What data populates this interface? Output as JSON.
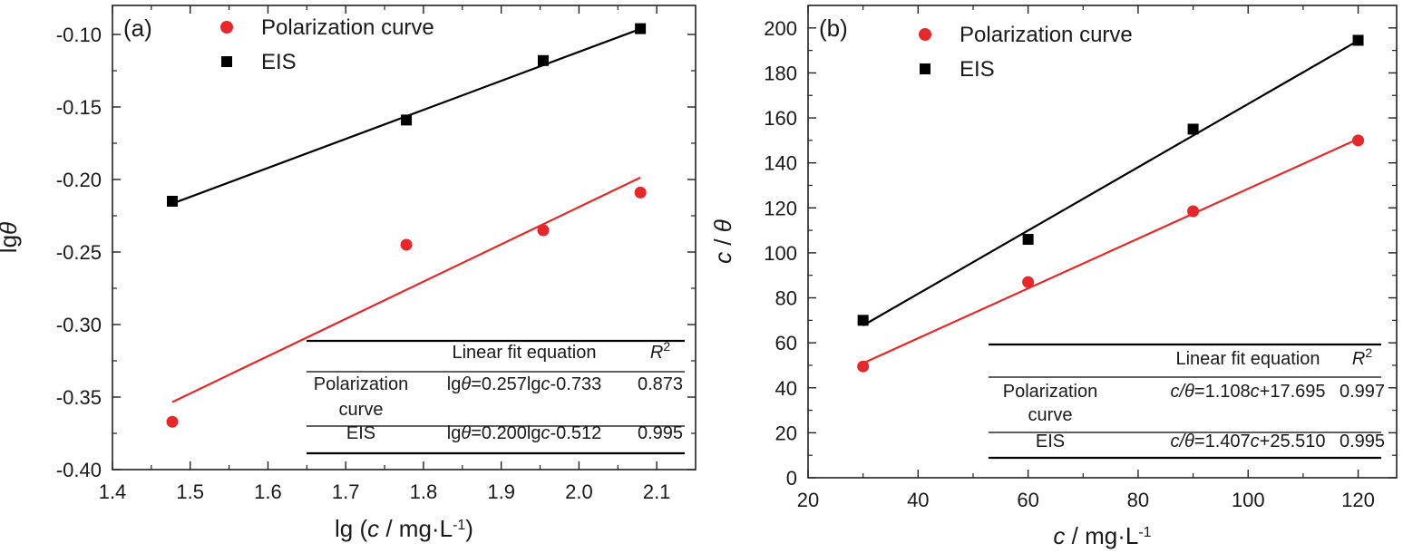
{
  "colors": {
    "polarization": "#e8272a",
    "eis": "#000000",
    "axis": "#222222"
  },
  "chart_data": [
    {
      "type": "scatter",
      "panel_label": "(a)",
      "xlabel": "lg (c / mg·L-1)",
      "ylabel": "lgθ",
      "xlim": [
        1.4,
        2.15
      ],
      "ylim": [
        -0.4,
        -0.08
      ],
      "xticks": [
        1.4,
        1.5,
        1.6,
        1.7,
        1.8,
        1.9,
        2.0,
        2.1
      ],
      "xtick_labels": [
        "1.4",
        "1.5",
        "1.6",
        "1.7",
        "1.8",
        "1.9",
        "2.0",
        "2.1"
      ],
      "yticks": [
        -0.4,
        -0.35,
        -0.3,
        -0.25,
        -0.2,
        -0.15,
        -0.1
      ],
      "ytick_labels": [
        "-0.40",
        "-0.35",
        "-0.30",
        "-0.25",
        "-0.20",
        "-0.15",
        "-0.10"
      ],
      "legend_position": "top-left",
      "series": [
        {
          "name": "Polarization curve",
          "marker": "circle",
          "color": "#e8272a",
          "x": [
            1.477,
            1.778,
            1.954,
            2.079
          ],
          "y": [
            -0.367,
            -0.245,
            -0.235,
            -0.209
          ],
          "fit": {
            "slope": 0.257,
            "intercept": -0.733
          }
        },
        {
          "name": "EIS",
          "marker": "square",
          "color": "#000000",
          "x": [
            1.477,
            1.778,
            1.954,
            2.079
          ],
          "y": [
            -0.215,
            -0.159,
            -0.118,
            -0.096
          ],
          "fit": {
            "slope": 0.2,
            "intercept": -0.512
          }
        }
      ],
      "table": {
        "header": [
          "",
          "Linear fit equation",
          "R2"
        ],
        "rows": [
          {
            "label": "Polarization curve",
            "lhs": "lg",
            "lhs_var": "θ",
            "mid": "=0.257lg",
            "rhs_var": "c",
            "tail": "-0.733",
            "r2": "0.873"
          },
          {
            "label": "EIS",
            "lhs": "lg",
            "lhs_var": "θ",
            "mid": "=0.200lg",
            "rhs_var": "c",
            "tail": "-0.512",
            "r2": "0.995"
          }
        ]
      }
    },
    {
      "type": "scatter",
      "panel_label": "(b)",
      "xlabel": "c / mg·L-1",
      "ylabel": "c / θ",
      "xlim": [
        20,
        127
      ],
      "ylim": [
        0,
        210
      ],
      "xticks": [
        20,
        40,
        60,
        80,
        100,
        120
      ],
      "xtick_labels": [
        "20",
        "40",
        "60",
        "80",
        "100",
        "120"
      ],
      "yticks": [
        0,
        20,
        40,
        60,
        80,
        100,
        120,
        140,
        160,
        180,
        200
      ],
      "ytick_labels": [
        "0",
        "20",
        "40",
        "60",
        "80",
        "100",
        "120",
        "140",
        "160",
        "180",
        "200"
      ],
      "legend_position": "top-left",
      "series": [
        {
          "name": "Polarization curve",
          "marker": "circle",
          "color": "#e8272a",
          "x": [
            30,
            60,
            90,
            120
          ],
          "y": [
            49.5,
            87,
            118.5,
            150
          ],
          "fit": {
            "slope": 1.108,
            "intercept": 17.695
          }
        },
        {
          "name": "EIS",
          "marker": "square",
          "color": "#000000",
          "x": [
            30,
            60,
            90,
            120
          ],
          "y": [
            70,
            106,
            155,
            194.5
          ],
          "fit": {
            "slope": 1.407,
            "intercept": 25.51
          }
        }
      ],
      "table": {
        "header": [
          "",
          "Linear fit equation",
          "R2"
        ],
        "rows": [
          {
            "label": "Polarization curve",
            "lhs": "",
            "lhs_var": "c/θ",
            "mid": "=1.108",
            "rhs_var": "c",
            "tail": "+17.695",
            "r2": "0.997"
          },
          {
            "label": "EIS",
            "lhs": "",
            "lhs_var": "c/θ",
            "mid": "=1.407",
            "rhs_var": "c",
            "tail": "+25.510",
            "r2": "0.995"
          }
        ]
      }
    }
  ]
}
